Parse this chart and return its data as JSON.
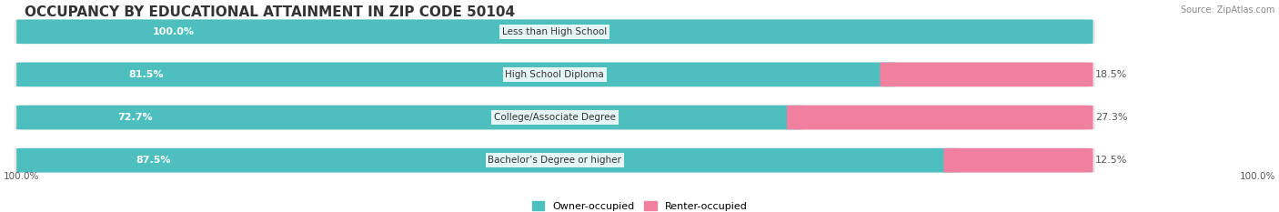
{
  "title": "OCCUPANCY BY EDUCATIONAL ATTAINMENT IN ZIP CODE 50104",
  "source": "Source: ZipAtlas.com",
  "categories": [
    "Less than High School",
    "High School Diploma",
    "College/Associate Degree",
    "Bachelor’s Degree or higher"
  ],
  "owner_values": [
    100.0,
    81.5,
    72.7,
    87.5
  ],
  "renter_values": [
    0.0,
    18.5,
    27.3,
    12.5
  ],
  "owner_color": "#4dbfbf",
  "renter_color": "#f080a0",
  "bar_bg_color": "#e8e8e8",
  "owner_label": "Owner-occupied",
  "renter_label": "Renter-occupied",
  "axis_label_left": "100.0%",
  "axis_label_right": "100.0%",
  "title_fontsize": 11,
  "label_fontsize": 8,
  "bar_height": 0.55,
  "figsize": [
    14.06,
    2.33
  ],
  "dpi": 100
}
